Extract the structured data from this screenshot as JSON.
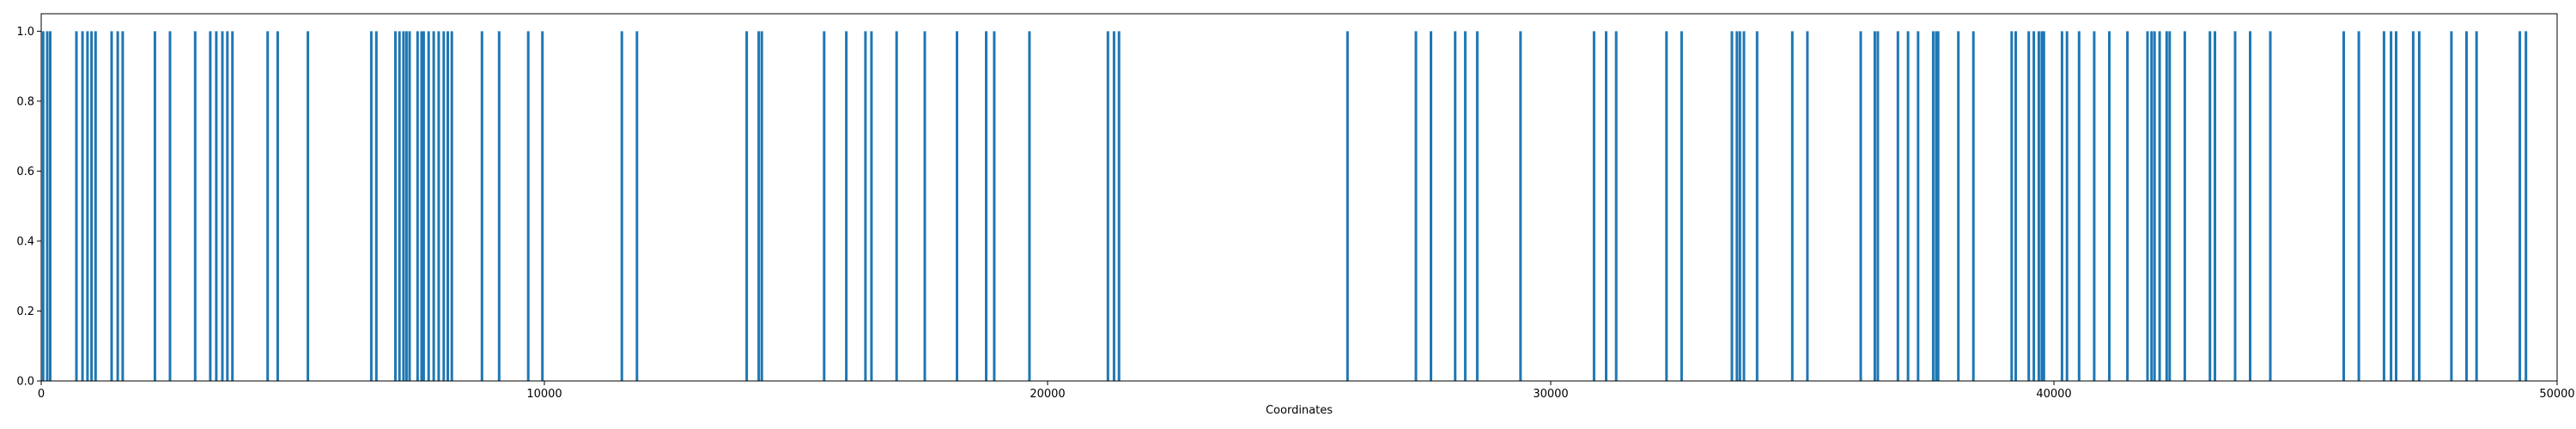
{
  "chart_data": {
    "type": "bar",
    "title": "",
    "xlabel": "Coordinates",
    "ylabel": "",
    "xlim": [
      0,
      50000
    ],
    "ylim": [
      0,
      1.05
    ],
    "grid": false,
    "xticks": [
      "0",
      "10000",
      "20000",
      "30000",
      "40000",
      "50000"
    ],
    "yticks": [
      "0.0",
      "0.2",
      "0.4",
      "0.6",
      "0.8",
      "1.0"
    ],
    "bar_color": "#1f77b4",
    "bar_height": 1.0,
    "x": [
      40,
      120,
      180,
      700,
      820,
      920,
      1000,
      1080,
      1400,
      1520,
      1620,
      2260,
      2560,
      3060,
      3360,
      3480,
      3600,
      3700,
      3800,
      4500,
      4700,
      5300,
      6560,
      6660,
      7040,
      7120,
      7200,
      7260,
      7320,
      7480,
      7560,
      7600,
      7700,
      7800,
      7900,
      8000,
      8080,
      8160,
      8760,
      9100,
      9680,
      9960,
      11540,
      11840,
      14020,
      14260,
      14320,
      15560,
      16000,
      16380,
      16500,
      17000,
      17560,
      18200,
      18780,
      18940,
      19640,
      21200,
      21320,
      21420,
      25960,
      27320,
      27620,
      28100,
      28300,
      28540,
      29400,
      30860,
      31100,
      31300,
      32300,
      32600,
      33600,
      33700,
      33760,
      33840,
      34100,
      34800,
      35100,
      36160,
      36440,
      36500,
      36900,
      37100,
      37300,
      37600,
      37660,
      37700,
      38100,
      38400,
      39160,
      39240,
      39500,
      39600,
      39700,
      39760,
      39800,
      40160,
      40260,
      40500,
      40800,
      41100,
      41460,
      41860,
      41940,
      42000,
      42100,
      42240,
      42300,
      42600,
      43100,
      43200,
      43600,
      43900,
      44300,
      45760,
      46060,
      46560,
      46700,
      46800,
      47140,
      47260,
      47900,
      48200,
      48400,
      49260,
      49380
    ],
    "ytick_values": [
      0,
      0.2,
      0.4,
      0.6,
      0.8,
      1.0
    ],
    "xtick_values": [
      0,
      10000,
      20000,
      30000,
      40000,
      50000
    ]
  }
}
